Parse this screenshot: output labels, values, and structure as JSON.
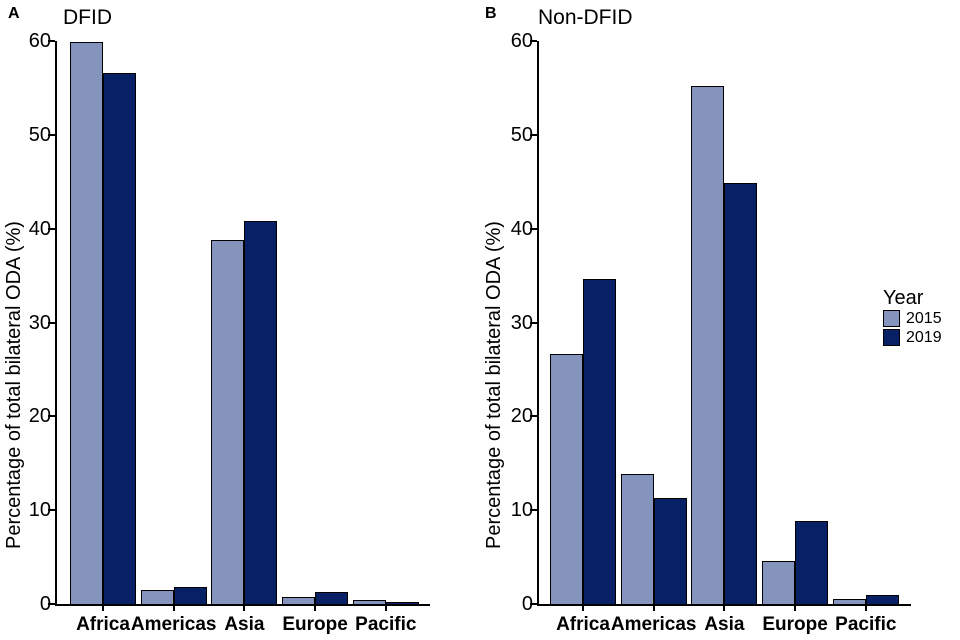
{
  "chart_data": [
    {
      "type": "bar",
      "panel_label": "A",
      "title": "DFID",
      "xlabel": "",
      "ylabel": "Percentage of total bilateral ODA (%)",
      "categories": [
        "Africa",
        "Americas",
        "Asia",
        "Europe",
        "Pacific"
      ],
      "series": [
        {
          "name": "2015",
          "color": "#8494BC",
          "values": [
            59.7,
            1.3,
            38.6,
            0.6,
            0.3
          ]
        },
        {
          "name": "2019",
          "color": "#082166",
          "values": [
            56.4,
            1.7,
            40.7,
            1.1,
            0.05
          ]
        }
      ],
      "ylim": [
        0,
        60
      ],
      "yticks": [
        0,
        10,
        20,
        30,
        40,
        50,
        60
      ],
      "grid": false,
      "legend_position": "right"
    },
    {
      "type": "bar",
      "panel_label": "B",
      "title": "Non-DFID",
      "xlabel": "",
      "ylabel": "Percentage of total bilateral ODA (%)",
      "categories": [
        "Africa",
        "Americas",
        "Asia",
        "Europe",
        "Pacific"
      ],
      "series": [
        {
          "name": "2015",
          "color": "#8494BC",
          "values": [
            26.5,
            13.7,
            55.0,
            4.4,
            0.4
          ]
        },
        {
          "name": "2019",
          "color": "#082166",
          "values": [
            34.5,
            11.1,
            44.7,
            8.7,
            0.8
          ]
        }
      ],
      "ylim": [
        0,
        60
      ],
      "yticks": [
        0,
        10,
        20,
        30,
        40,
        50,
        60
      ],
      "grid": false,
      "legend_position": "right"
    }
  ],
  "legend": {
    "title": "Year",
    "items": [
      {
        "label": "2015",
        "color": "#8494BC"
      },
      {
        "label": "2019",
        "color": "#082166"
      }
    ]
  }
}
